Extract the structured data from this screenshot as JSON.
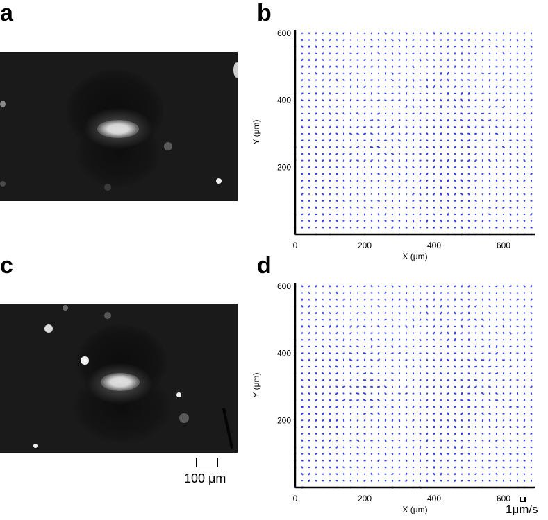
{
  "panels": {
    "a": "a",
    "b": "b",
    "c": "c",
    "d": "d"
  },
  "scale_bar": {
    "label": "100 μm"
  },
  "velocity_scale": {
    "label": "1μm/s"
  },
  "vector_color": "#2a3cf0",
  "chart_data": [
    {
      "panel": "b",
      "type": "scatter",
      "subtype": "quiver",
      "xlabel": "X (μm)",
      "ylabel": "Y (μm)",
      "xlim": [
        0,
        690
      ],
      "ylim": [
        0,
        610
      ],
      "xticks": [
        0,
        200,
        400,
        600
      ],
      "yticks": [
        200,
        400,
        600
      ],
      "grid_spacing_um": 20,
      "vortices": [
        {
          "x": 240,
          "y": 420,
          "strength": 1.0
        },
        {
          "x": 520,
          "y": 420,
          "strength": -1.0
        },
        {
          "x": 240,
          "y": 200,
          "strength": -1.0
        },
        {
          "x": 520,
          "y": 200,
          "strength": 1.0
        }
      ]
    },
    {
      "panel": "d",
      "type": "scatter",
      "subtype": "quiver",
      "xlabel": "X (μm)",
      "ylabel": "Y (μm)",
      "xlim": [
        0,
        690
      ],
      "ylim": [
        0,
        610
      ],
      "xticks": [
        0,
        200,
        400,
        600
      ],
      "yticks": [
        200,
        400,
        600
      ],
      "grid_spacing_um": 20,
      "vortices": [
        {
          "x": 200,
          "y": 430,
          "strength": 1.0
        },
        {
          "x": 520,
          "y": 430,
          "strength": -1.0
        },
        {
          "x": 200,
          "y": 200,
          "strength": -1.0
        },
        {
          "x": 520,
          "y": 200,
          "strength": 1.0
        }
      ]
    }
  ]
}
